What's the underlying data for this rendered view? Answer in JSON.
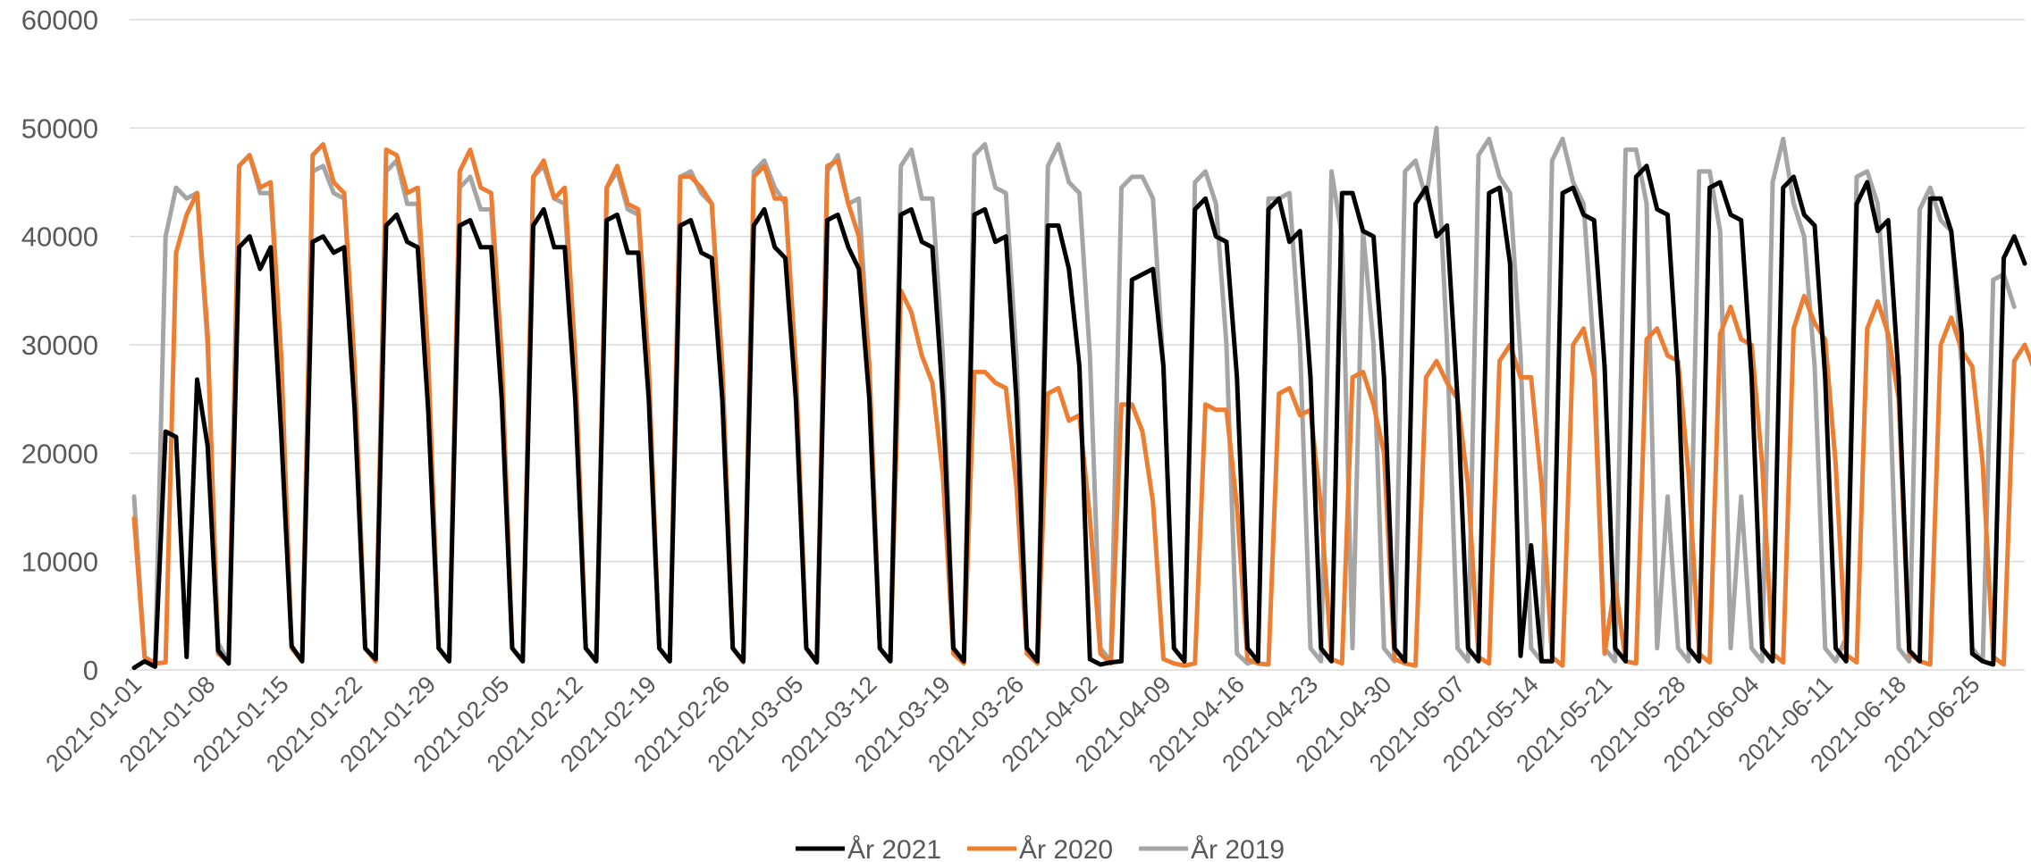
{
  "chart_data": {
    "type": "line",
    "ylim": [
      0,
      60000
    ],
    "yticks": [
      "0",
      "10000",
      "20000",
      "30000",
      "40000",
      "50000",
      "60000"
    ],
    "x_tick_labels": [
      "2021-01-01",
      "2021-01-08",
      "2021-01-15",
      "2021-01-22",
      "2021-01-29",
      "2021-02-05",
      "2021-02-12",
      "2021-02-19",
      "2021-02-26",
      "2021-03-05",
      "2021-03-12",
      "2021-03-19",
      "2021-03-26",
      "2021-04-02",
      "2021-04-09",
      "2021-04-16",
      "2021-04-23",
      "2021-04-30",
      "2021-05-07",
      "2021-05-14",
      "2021-05-21",
      "2021-05-28",
      "2021-06-04",
      "2021-06-11",
      "2021-06-18",
      "2021-06-25"
    ],
    "grid": true,
    "legend_position": "bottom",
    "series": [
      {
        "name": "År 2021",
        "color": "#000000",
        "values": [
          200,
          800,
          300,
          22000,
          21500,
          1200,
          26800,
          20700,
          1800,
          600,
          39000,
          40000,
          37000,
          39000,
          22000,
          2200,
          800,
          39500,
          40000,
          38500,
          39000,
          24000,
          2000,
          1000,
          41000,
          42000,
          39500,
          39000,
          24000,
          2000,
          800,
          41000,
          41500,
          39000,
          39000,
          25000,
          2000,
          800,
          41000,
          42500,
          39000,
          39000,
          25000,
          2000,
          800,
          41500,
          42000,
          38500,
          38500,
          25000,
          2000,
          800,
          41000,
          41500,
          38500,
          38000,
          25000,
          2000,
          800,
          41000,
          42500,
          39000,
          38000,
          25000,
          2000,
          700,
          41500,
          42000,
          39000,
          37000,
          25000,
          2000,
          800,
          42000,
          42500,
          39500,
          39000,
          25000,
          2000,
          800,
          42000,
          42500,
          39500,
          40000,
          25000,
          2000,
          800,
          41000,
          41000,
          37000,
          28000,
          1000,
          500,
          700,
          800,
          36000,
          36500,
          37000,
          28000,
          2000,
          800,
          42500,
          43500,
          40000,
          39500,
          27000,
          2000,
          800,
          42500,
          43500,
          39500,
          40500,
          27000,
          2000,
          800,
          44000,
          44000,
          40500,
          40000,
          27000,
          2000,
          800,
          43000,
          44500,
          40000,
          41000,
          25000,
          2000,
          800,
          44000,
          44500,
          37500,
          1300,
          11500,
          800,
          800,
          44000,
          44500,
          42000,
          41500,
          28000,
          2000,
          800,
          45500,
          46500,
          42500,
          42000,
          27000,
          2000,
          800,
          44500,
          45000,
          42000,
          41500,
          27000,
          2000,
          800,
          44500,
          45500,
          42000,
          41000,
          27000,
          2000,
          800,
          43000,
          45000,
          40500,
          41500,
          27000,
          1800,
          800,
          43500,
          43500,
          40500,
          31000,
          1500,
          800,
          500,
          38000,
          40000,
          37500
        ]
      },
      {
        "name": "År 2020",
        "color": "#ed7d31",
        "values": [
          14000,
          1200,
          600,
          700,
          38500,
          42000,
          44000,
          31000,
          1500,
          700,
          46500,
          47500,
          44500,
          45000,
          29000,
          2000,
          800,
          47500,
          48500,
          45000,
          44000,
          28000,
          2000,
          800,
          48000,
          47500,
          44000,
          44500,
          29000,
          2000,
          800,
          46000,
          48000,
          44500,
          44000,
          29000,
          2000,
          800,
          45500,
          47000,
          43500,
          44500,
          29000,
          2000,
          800,
          44500,
          46500,
          43000,
          42500,
          28000,
          2000,
          800,
          45500,
          45500,
          44500,
          43000,
          28000,
          2000,
          700,
          45500,
          46500,
          43500,
          43500,
          28000,
          2000,
          800,
          46500,
          47000,
          43000,
          40000,
          28000,
          2000,
          800,
          35000,
          33000,
          29000,
          26500,
          18000,
          1500,
          600,
          27500,
          27500,
          26500,
          26000,
          17000,
          1500,
          600,
          25500,
          26000,
          23000,
          23500,
          14000,
          1500,
          600,
          24500,
          24500,
          22000,
          15500,
          1000,
          600,
          400,
          600,
          24500,
          24000,
          24000,
          15000,
          1000,
          600,
          500,
          25500,
          26000,
          23500,
          24000,
          15000,
          1000,
          600,
          27000,
          27500,
          24500,
          20000,
          1000,
          600,
          400,
          27000,
          28500,
          26500,
          25000,
          17000,
          1200,
          600,
          28500,
          30000,
          27000,
          27000,
          17000,
          1200,
          400,
          30000,
          31500,
          27000,
          1500,
          8000,
          800,
          600,
          30500,
          31500,
          29000,
          28500,
          18000,
          1500,
          700,
          31000,
          33500,
          30500,
          30000,
          19000,
          1500,
          700,
          31500,
          34500,
          32000,
          30500,
          19000,
          1400,
          700,
          31500,
          34000,
          31000,
          25000,
          1500,
          800,
          500,
          30000,
          32500,
          29500,
          28000,
          19000,
          1200,
          500,
          28500,
          30000,
          27500
        ]
      },
      {
        "name": "År 2019",
        "color": "#a5a5a5",
        "values": [
          16000,
          1200,
          600,
          40000,
          44500,
          43500,
          44000,
          30000,
          2500,
          700,
          46500,
          47500,
          44000,
          44000,
          29000,
          2000,
          800,
          46000,
          46500,
          44000,
          43500,
          28000,
          2000,
          800,
          46000,
          47000,
          43000,
          43000,
          28000,
          2000,
          800,
          44500,
          45500,
          42500,
          42500,
          28000,
          2000,
          800,
          45500,
          46500,
          43500,
          43000,
          28000,
          2000,
          800,
          44500,
          46000,
          42500,
          42000,
          27000,
          2000,
          800,
          45500,
          46000,
          44000,
          43000,
          28000,
          2000,
          800,
          46000,
          47000,
          44500,
          43000,
          28000,
          2000,
          800,
          46000,
          47500,
          43000,
          43500,
          28000,
          2000,
          800,
          46500,
          48000,
          43500,
          43500,
          29000,
          2000,
          800,
          47500,
          48500,
          44500,
          44000,
          29000,
          2000,
          800,
          46500,
          48500,
          45000,
          44000,
          29000,
          2000,
          800,
          44500,
          45500,
          45500,
          43500,
          28000,
          2000,
          800,
          45000,
          46000,
          43000,
          30000,
          1500,
          600,
          900,
          43500,
          43500,
          44000,
          30000,
          2000,
          800,
          46000,
          40000,
          2000,
          40500,
          30000,
          2000,
          800,
          46000,
          47000,
          43500,
          50000,
          30000,
          2000,
          800,
          47500,
          49000,
          45500,
          44000,
          29000,
          2000,
          800,
          47000,
          49000,
          45000,
          43000,
          29000,
          2000,
          800,
          48000,
          48000,
          43000,
          2000,
          16000,
          2000,
          800,
          46000,
          46000,
          40500,
          2000,
          16000,
          2000,
          800,
          45000,
          49000,
          43000,
          40000,
          28000,
          2000,
          800,
          3000,
          45500,
          46000,
          43000,
          30000,
          2000,
          800,
          42500,
          44500,
          41500,
          40500,
          28000,
          2000,
          800,
          36000,
          36500,
          33500
        ]
      }
    ]
  }
}
